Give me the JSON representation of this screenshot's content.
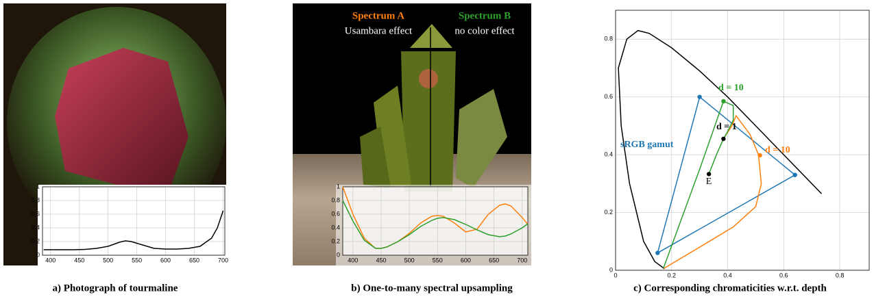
{
  "chart_data": [
    {
      "type": "line",
      "caption": "a) Photograph of tourmaline",
      "x": [
        388,
        400,
        420,
        440,
        460,
        480,
        500,
        520,
        530,
        540,
        560,
        580,
        600,
        620,
        640,
        660,
        680,
        690,
        700
      ],
      "series": [
        {
          "color": "#000000",
          "values": [
            0.08,
            0.08,
            0.08,
            0.08,
            0.085,
            0.1,
            0.13,
            0.19,
            0.21,
            0.2,
            0.15,
            0.1,
            0.09,
            0.09,
            0.1,
            0.13,
            0.25,
            0.4,
            0.65
          ]
        }
      ],
      "xlim": [
        386,
        703
      ],
      "xticks": [
        400,
        450,
        500,
        550,
        600,
        650,
        700
      ],
      "ylim": [
        0,
        1
      ],
      "yticks": [
        0,
        0.2,
        0.4,
        0.6,
        0.8,
        1
      ],
      "grid": true
    },
    {
      "type": "line",
      "caption": "b) One-to-many spectral upsampling",
      "x": [
        382,
        400,
        420,
        440,
        450,
        460,
        480,
        500,
        520,
        540,
        550,
        560,
        580,
        600,
        620,
        640,
        660,
        670,
        680,
        700,
        710
      ],
      "series": [
        {
          "name": "Spectrum A",
          "color": "#ff7f0e",
          "values": [
            1.0,
            0.6,
            0.25,
            0.1,
            0.1,
            0.12,
            0.2,
            0.32,
            0.47,
            0.57,
            0.58,
            0.57,
            0.47,
            0.34,
            0.38,
            0.6,
            0.73,
            0.75,
            0.72,
            0.55,
            0.45
          ]
        },
        {
          "name": "Spectrum B",
          "color": "#2ca02c",
          "values": [
            0.8,
            0.5,
            0.22,
            0.1,
            0.1,
            0.12,
            0.2,
            0.3,
            0.42,
            0.51,
            0.54,
            0.55,
            0.52,
            0.45,
            0.37,
            0.3,
            0.27,
            0.28,
            0.31,
            0.4,
            0.46
          ]
        }
      ],
      "annotations": [
        "Usambara effect",
        "no color effect"
      ],
      "xlim": [
        382,
        710
      ],
      "xticks": [
        400,
        450,
        500,
        550,
        600,
        650,
        700
      ],
      "ylim": [
        0,
        1
      ],
      "yticks": [
        0,
        0.2,
        0.4,
        0.6,
        0.8,
        1
      ],
      "grid": true
    },
    {
      "type": "line",
      "caption": "c) Corresponding chromaticities w.r.t. depth",
      "series": [
        {
          "color": "#000000",
          "line": true,
          "markers": false,
          "x": [
            0.175,
            0.14,
            0.1,
            0.05,
            0.02,
            0.01,
            0.04,
            0.08,
            0.12,
            0.2,
            0.3,
            0.4,
            0.5,
            0.6,
            0.735
          ],
          "values": [
            0.005,
            0.03,
            0.1,
            0.3,
            0.5,
            0.7,
            0.8,
            0.83,
            0.82,
            0.77,
            0.69,
            0.6,
            0.5,
            0.4,
            0.265
          ]
        },
        {
          "name": "sRGB gamut",
          "color": "#1f77b4",
          "line": true,
          "markers": true,
          "x": [
            0.64,
            0.3,
            0.15,
            0.64
          ],
          "values": [
            0.33,
            0.6,
            0.06,
            0.33
          ]
        },
        {
          "color": "#ff7f0e",
          "line": true,
          "markers": false,
          "x": [
            0.17,
            0.3,
            0.42,
            0.5,
            0.52,
            0.51,
            0.48,
            0.43,
            0.415,
            0.385
          ],
          "values": [
            0.005,
            0.08,
            0.15,
            0.22,
            0.3,
            0.4,
            0.47,
            0.535,
            0.5,
            0.455
          ]
        },
        {
          "color": "#2ca02c",
          "line": true,
          "markers": false,
          "x": [
            0.17,
            0.3,
            0.385,
            0.42,
            0.42,
            0.4,
            0.385,
            0.36,
            0.333
          ],
          "values": [
            0.005,
            0.35,
            0.585,
            0.57,
            0.52,
            0.48,
            0.455,
            0.4,
            0.333
          ]
        },
        {
          "color": "#2ca02c",
          "line": false,
          "markers": true,
          "x": [
            0.385
          ],
          "values": [
            0.585
          ]
        },
        {
          "color": "#ff7f0e",
          "line": false,
          "markers": true,
          "x": [
            0.515
          ],
          "values": [
            0.398
          ]
        },
        {
          "color": "#000000",
          "line": false,
          "markers": true,
          "x": [
            0.385,
            0.333
          ],
          "values": [
            0.455,
            0.333
          ]
        }
      ],
      "annotations": [
        "d = 10",
        "d = 1",
        "d = 10",
        "E"
      ],
      "xlim": [
        0,
        0.905
      ],
      "xticks": [
        0,
        0.2,
        0.4,
        0.6,
        0.8
      ],
      "ylim": [
        0,
        0.9
      ],
      "yticks": [
        0,
        0.2,
        0.4,
        0.6,
        0.8
      ],
      "grid": true
    }
  ]
}
